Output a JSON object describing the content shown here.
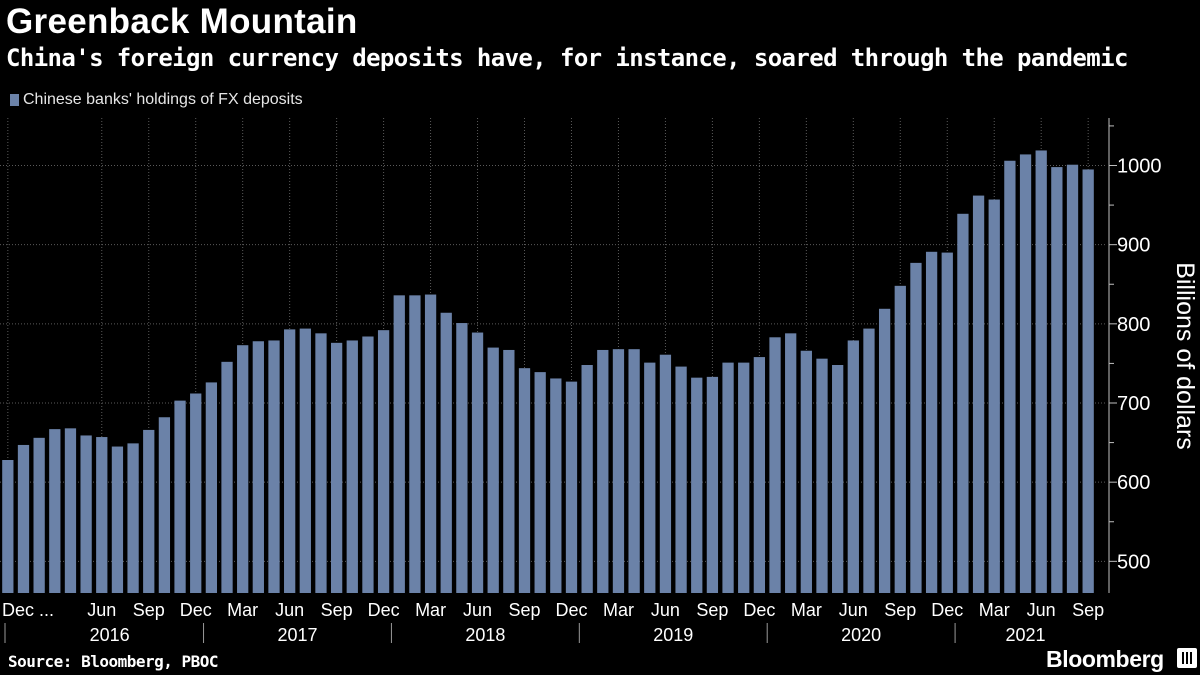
{
  "header": {
    "title": "Greenback Mountain",
    "subtitle": "China's foreign currency deposits have, for instance, soared through the pandemic"
  },
  "legend": {
    "label": "Chinese banks' holdings of FX deposits",
    "color": "#6b82a8"
  },
  "footer": {
    "source": "Source: Bloomberg, PBOC",
    "brand": "Bloomberg"
  },
  "chart_data": {
    "type": "bar",
    "title": "Greenback Mountain",
    "subtitle": "China's foreign currency deposits have, for instance, soared through the pandemic",
    "ylabel": "Billions of dollars",
    "xlabel": "",
    "ylim": [
      460,
      1060
    ],
    "yticks": [
      500,
      600,
      700,
      800,
      900,
      1000
    ],
    "bar_color": "#6b82a8",
    "grid": true,
    "legend_position": "top-left",
    "series": [
      {
        "name": "Chinese banks' holdings of FX deposits",
        "values": [
          628,
          647,
          656,
          667,
          668,
          659,
          657,
          645,
          649,
          666,
          682,
          703,
          712,
          726,
          752,
          773,
          778,
          779,
          793,
          794,
          788,
          776,
          779,
          784,
          792,
          836,
          836,
          837,
          814,
          801,
          789,
          770,
          767,
          744,
          739,
          731,
          727,
          748,
          767,
          768,
          768,
          751,
          761,
          746,
          732,
          733,
          751,
          751,
          758,
          783,
          788,
          766,
          756,
          748,
          779,
          794,
          819,
          848,
          877,
          891,
          890,
          939,
          962,
          957,
          1006,
          1014,
          1019,
          998,
          1001,
          995
        ]
      }
    ],
    "categories": [
      "Dec 2015",
      "Jan 2016",
      "Feb 2016",
      "Mar 2016",
      "Apr 2016",
      "May 2016",
      "Jun 2016",
      "Jul 2016",
      "Aug 2016",
      "Sep 2016",
      "Oct 2016",
      "Nov 2016",
      "Dec 2016",
      "Jan 2017",
      "Feb 2017",
      "Mar 2017",
      "Apr 2017",
      "May 2017",
      "Jun 2017",
      "Jul 2017",
      "Aug 2017",
      "Sep 2017",
      "Oct 2017",
      "Nov 2017",
      "Dec 2017",
      "Jan 2018",
      "Feb 2018",
      "Mar 2018",
      "Apr 2018",
      "May 2018",
      "Jun 2018",
      "Jul 2018",
      "Aug 2018",
      "Sep 2018",
      "Oct 2018",
      "Nov 2018",
      "Dec 2018",
      "Jan 2019",
      "Feb 2019",
      "Mar 2019",
      "Apr 2019",
      "May 2019",
      "Jun 2019",
      "Jul 2019",
      "Aug 2019",
      "Sep 2019",
      "Oct 2019",
      "Nov 2019",
      "Dec 2019",
      "Jan 2020",
      "Feb 2020",
      "Mar 2020",
      "Apr 2020",
      "May 2020",
      "Jun 2020",
      "Jul 2020",
      "Aug 2020",
      "Sep 2020",
      "Oct 2020",
      "Nov 2020",
      "Dec 2020",
      "Jan 2021",
      "Feb 2021",
      "Mar 2021",
      "Apr 2021",
      "May 2021",
      "Jun 2021",
      "Jul 2021",
      "Aug 2021",
      "Sep 2021"
    ],
    "x_tick_labels": [
      {
        "index": 0,
        "label": "Dec ..."
      },
      {
        "index": 6,
        "label": "Jun"
      },
      {
        "index": 9,
        "label": "Sep"
      },
      {
        "index": 12,
        "label": "Dec"
      },
      {
        "index": 15,
        "label": "Mar"
      },
      {
        "index": 18,
        "label": "Jun"
      },
      {
        "index": 21,
        "label": "Sep"
      },
      {
        "index": 24,
        "label": "Dec"
      },
      {
        "index": 27,
        "label": "Mar"
      },
      {
        "index": 30,
        "label": "Jun"
      },
      {
        "index": 33,
        "label": "Sep"
      },
      {
        "index": 36,
        "label": "Dec"
      },
      {
        "index": 39,
        "label": "Mar"
      },
      {
        "index": 42,
        "label": "Jun"
      },
      {
        "index": 45,
        "label": "Sep"
      },
      {
        "index": 48,
        "label": "Dec"
      },
      {
        "index": 51,
        "label": "Mar"
      },
      {
        "index": 54,
        "label": "Jun"
      },
      {
        "index": 57,
        "label": "Sep"
      },
      {
        "index": 60,
        "label": "Dec"
      },
      {
        "index": 63,
        "label": "Mar"
      },
      {
        "index": 66,
        "label": "Jun"
      },
      {
        "index": 69,
        "label": "Sep"
      }
    ],
    "year_groups": [
      {
        "label": "2016",
        "start": 1,
        "end": 12
      },
      {
        "label": "2017",
        "start": 13,
        "end": 24
      },
      {
        "label": "2018",
        "start": 25,
        "end": 36
      },
      {
        "label": "2019",
        "start": 37,
        "end": 48
      },
      {
        "label": "2020",
        "start": 49,
        "end": 60
      },
      {
        "label": "2021",
        "start": 61,
        "end": 69
      }
    ]
  }
}
